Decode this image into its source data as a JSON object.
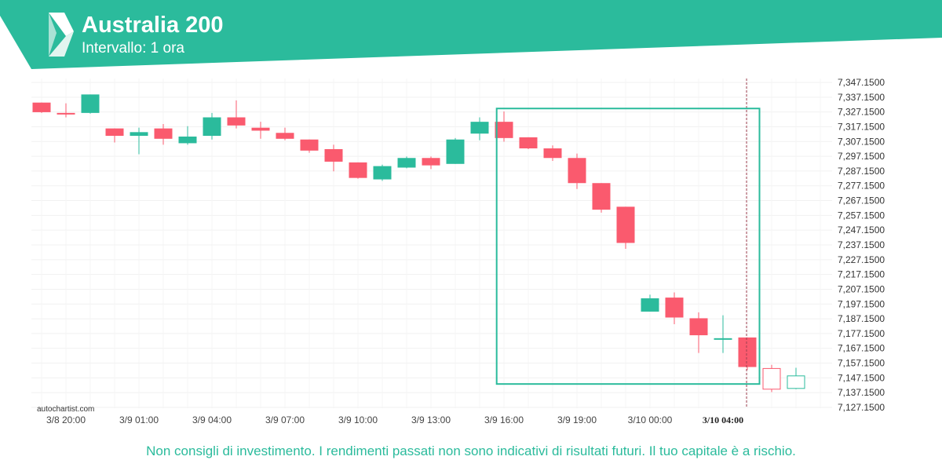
{
  "header": {
    "title": "Australia 200",
    "subtitle": "Intervallo: 1 ora",
    "background_color": "#2bbb9c",
    "logo_icon": "autochartist-logo-icon"
  },
  "watermark": "autochartist.com",
  "disclaimer": "Non consigli di investimento. I rendimenti passati non sono indicativi di risultati futuri. Il tuo capitale è a rischio.",
  "chart_data": {
    "type": "candlestick",
    "interval": "1 ora",
    "x_ticks": [
      {
        "index": 1,
        "label": "3/8 20:00"
      },
      {
        "index": 4,
        "label": "3/9 01:00"
      },
      {
        "index": 7,
        "label": "3/9 04:00"
      },
      {
        "index": 10,
        "label": "3/9 07:00"
      },
      {
        "index": 13,
        "label": "3/9 10:00"
      },
      {
        "index": 16,
        "label": "3/9 13:00"
      },
      {
        "index": 19,
        "label": "3/9 16:00"
      },
      {
        "index": 22,
        "label": "3/9 19:00"
      },
      {
        "index": 25,
        "label": "3/10 00:00"
      },
      {
        "index": 28,
        "label": "3/10 04:00",
        "highlight": true
      }
    ],
    "y_ticks": [
      "7,347.1500",
      "7,337.1500",
      "7,327.1500",
      "7,317.1500",
      "7,307.1500",
      "7,297.1500",
      "7,287.1500",
      "7,277.1500",
      "7,267.1500",
      "7,257.1500",
      "7,247.1500",
      "7,237.1500",
      "7,227.1500",
      "7,217.1500",
      "7,207.1500",
      "7,197.1500",
      "7,187.1500",
      "7,177.1500",
      "7,167.1500",
      "7,157.1500",
      "7,147.1500",
      "7,137.1500",
      "7,127.1500"
    ],
    "ylim": [
      7127.15,
      7347.15
    ],
    "colors": {
      "up": "#2bbb9c",
      "down": "#fa5a6e",
      "box": "#2bbb9c"
    },
    "candles": [
      {
        "o": 7333.5,
        "h": 7333.5,
        "l": 7326.5,
        "c": 7327.0
      },
      {
        "o": 7326.5,
        "h": 7333.0,
        "l": 7323.5,
        "c": 7326.0
      },
      {
        "o": 7326.5,
        "h": 7339.0,
        "l": 7326.0,
        "c": 7339.0
      },
      {
        "o": 7316.0,
        "h": 7316.0,
        "l": 7306.5,
        "c": 7311.0
      },
      {
        "o": 7311.0,
        "h": 7316.5,
        "l": 7298.5,
        "c": 7313.5
      },
      {
        "o": 7316.0,
        "h": 7319.0,
        "l": 7305.0,
        "c": 7309.0
      },
      {
        "o": 7306.0,
        "h": 7317.5,
        "l": 7305.0,
        "c": 7310.5
      },
      {
        "o": 7311.0,
        "h": 7326.5,
        "l": 7308.5,
        "c": 7323.5
      },
      {
        "o": 7323.5,
        "h": 7335.0,
        "l": 7316.0,
        "c": 7318.0
      },
      {
        "o": 7316.5,
        "h": 7320.5,
        "l": 7309.0,
        "c": 7314.5
      },
      {
        "o": 7313.0,
        "h": 7316.5,
        "l": 7308.0,
        "c": 7309.0
      },
      {
        "o": 7308.5,
        "h": 7308.5,
        "l": 7299.5,
        "c": 7301.0
      },
      {
        "o": 7302.0,
        "h": 7305.0,
        "l": 7287.0,
        "c": 7293.5
      },
      {
        "o": 7293.0,
        "h": 7293.0,
        "l": 7282.0,
        "c": 7282.5
      },
      {
        "o": 7281.5,
        "h": 7291.5,
        "l": 7280.5,
        "c": 7290.5
      },
      {
        "o": 7289.5,
        "h": 7297.0,
        "l": 7289.0,
        "c": 7296.0
      },
      {
        "o": 7296.0,
        "h": 7297.0,
        "l": 7288.5,
        "c": 7291.0
      },
      {
        "o": 7292.0,
        "h": 7309.5,
        "l": 7292.0,
        "c": 7308.5
      },
      {
        "o": 7312.5,
        "h": 7323.5,
        "l": 7308.0,
        "c": 7320.5
      },
      {
        "o": 7320.5,
        "h": 7327.5,
        "l": 7307.0,
        "c": 7309.5
      },
      {
        "o": 7310.0,
        "h": 7310.0,
        "l": 7302.0,
        "c": 7302.5
      },
      {
        "o": 7302.5,
        "h": 7304.5,
        "l": 7294.0,
        "c": 7296.0
      },
      {
        "o": 7296.0,
        "h": 7299.0,
        "l": 7275.0,
        "c": 7279.0
      },
      {
        "o": 7279.0,
        "h": 7279.0,
        "l": 7259.0,
        "c": 7261.0
      },
      {
        "o": 7263.0,
        "h": 7263.0,
        "l": 7234.5,
        "c": 7238.5
      },
      {
        "o": 7192.0,
        "h": 7203.5,
        "l": 7192.0,
        "c": 7201.0
      },
      {
        "o": 7201.5,
        "h": 7205.0,
        "l": 7183.5,
        "c": 7188.0
      },
      {
        "o": 7187.5,
        "h": 7191.5,
        "l": 7164.0,
        "c": 7176.0
      },
      {
        "o": 7174.0,
        "h": 7189.5,
        "l": 7164.0,
        "c": 7174.0
      },
      {
        "o": 7174.5,
        "h": 7174.5,
        "l": 7152.5,
        "c": 7154.5
      },
      {
        "o": 7153.5,
        "h": 7156.0,
        "l": 7137.5,
        "c": 7139.5,
        "hollow": true
      },
      {
        "o": 7140.0,
        "h": 7154.0,
        "l": 7139.5,
        "c": 7148.5,
        "hollow": true
      }
    ],
    "pattern_box": {
      "start_index": 18.7,
      "end_index": 29.5,
      "top": 7329.5,
      "bottom": 7143.0
    },
    "vertical_line_index": 29,
    "grid": true
  }
}
